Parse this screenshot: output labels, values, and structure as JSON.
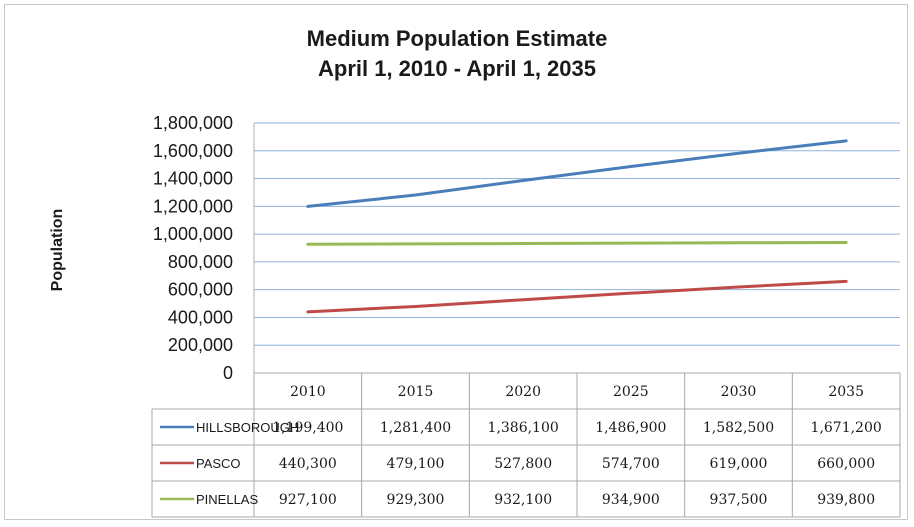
{
  "chart_data": {
    "type": "line",
    "title_lines": [
      "Medium Population Estimate",
      "April 1, 2010 - April 1, 2035"
    ],
    "xlabel": "",
    "ylabel": "Population",
    "ylim": [
      0,
      1800000
    ],
    "yticks": [
      "0",
      "200,000",
      "400,000",
      "600,000",
      "800,000",
      "1,000,000",
      "1,200,000",
      "1,400,000",
      "1,600,000",
      "1,800,000"
    ],
    "grid": true,
    "legend": "data-table",
    "categories": [
      "2010",
      "2015",
      "2020",
      "2025",
      "2030",
      "2035"
    ],
    "series": [
      {
        "name": "HILLSBOROUGH",
        "color": "#4a7ebb",
        "values": [
          1199400,
          1281400,
          1386100,
          1486900,
          1582500,
          1671200
        ],
        "labels": [
          "1,199,400",
          "1,281,400",
          "1,386,100",
          "1,486,900",
          "1,582,500",
          "1,671,200"
        ]
      },
      {
        "name": "PASCO",
        "color": "#be4b48",
        "values": [
          440300,
          479100,
          527800,
          574700,
          619000,
          660000
        ],
        "labels": [
          "440,300",
          "479,100",
          "527,800",
          "574,700",
          "619,000",
          "660,000"
        ]
      },
      {
        "name": "PINELLAS",
        "color": "#98b954",
        "values": [
          927100,
          929300,
          932100,
          934900,
          937500,
          939800
        ],
        "labels": [
          "927,100",
          "929,300",
          "932,100",
          "934,900",
          "937,500",
          "939,800"
        ]
      }
    ]
  }
}
